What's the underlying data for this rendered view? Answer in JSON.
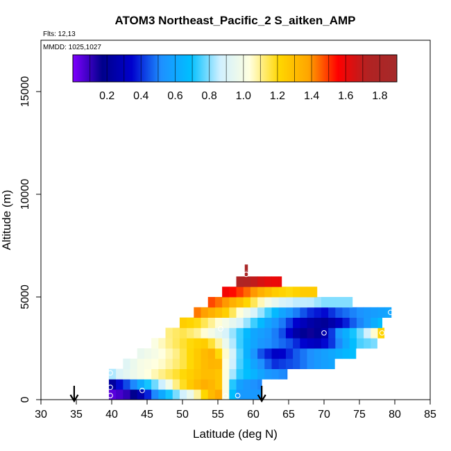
{
  "chart_data": {
    "type": "heatmap",
    "title": "ATOM3 Northeast_Pacific_2 S_aitken_AMP",
    "flights_label": "Flts: 12,13",
    "mmdd_label": "MMDD: 1025,1027",
    "xlabel": "Latitude (deg N)",
    "ylabel": "Altitude (m)",
    "xlim": [
      30,
      85
    ],
    "ylim": [
      0,
      17500
    ],
    "x_ticks": [
      "30",
      "35",
      "40",
      "45",
      "50",
      "55",
      "60",
      "65",
      "70",
      "75",
      "80",
      "85"
    ],
    "y_ticks": [
      "0",
      "5000",
      "10000",
      "15000"
    ],
    "colorbar": {
      "range": [
        0,
        1.9
      ],
      "tick_labels": [
        "0.2",
        "0.4",
        "0.6",
        "0.8",
        "1.0",
        "1.2",
        "1.4",
        "1.6",
        "1.8"
      ],
      "stops": [
        "#7f00ff",
        "#00008b",
        "#0000cd",
        "#1e90ff",
        "#00bfff",
        "#d0f0ff",
        "#ffffe0",
        "#ffd700",
        "#ffa500",
        "#ff0000",
        "#b22222",
        "#a52a2a"
      ]
    },
    "arrows_lat": [
      34.7,
      61.2
    ],
    "rows": [
      {
        "alt": 0,
        "lat_min": 39.6,
        "lat_max": 61.2,
        "lats": [
          39.6,
          42,
          44,
          46,
          48,
          51,
          53,
          55,
          56,
          57.5,
          59,
          61.2
        ],
        "vals": [
          0.04,
          0.1,
          0.25,
          0.5,
          0.7,
          0.95,
          1.2,
          1.4,
          1.05,
          0.55,
          0.55,
          0.55
        ]
      },
      {
        "alt": 500,
        "lat_min": 39.6,
        "lat_max": 61.2,
        "lats": [
          39.6,
          41,
          43,
          45,
          47,
          49,
          51,
          53,
          55,
          56,
          57.5,
          59,
          61.2
        ],
        "vals": [
          0.15,
          0.35,
          0.5,
          0.7,
          0.85,
          1.1,
          1.25,
          1.35,
          1.3,
          1.05,
          0.6,
          0.55,
          0.5
        ]
      },
      {
        "alt": 1000,
        "lat_min": 39.6,
        "lat_max": 64.8,
        "lats": [
          39.6,
          41,
          44,
          47,
          50,
          53,
          55,
          56,
          57.5,
          60,
          62,
          64.8
        ],
        "vals": [
          0.8,
          0.9,
          1.0,
          1.1,
          1.2,
          1.3,
          1.3,
          1.05,
          0.75,
          0.65,
          0.55,
          0.5
        ]
      },
      {
        "alt": 1500,
        "lat_min": 41.6,
        "lat_max": 71.5,
        "lats": [
          41.6,
          44,
          47,
          50,
          53,
          55,
          56,
          57.5,
          60,
          63,
          66,
          69,
          71.5
        ],
        "vals": [
          0.9,
          1.0,
          1.05,
          1.15,
          1.3,
          1.35,
          1.05,
          0.8,
          0.6,
          0.4,
          0.45,
          0.55,
          0.6
        ]
      },
      {
        "alt": 2000,
        "lat_min": 43.6,
        "lat_max": 74.5,
        "lats": [
          43.6,
          46,
          49,
          52,
          54,
          55.5,
          57,
          59,
          61,
          63.5,
          66,
          69,
          71,
          74.5
        ],
        "vals": [
          0.95,
          1.0,
          1.1,
          1.25,
          1.35,
          1.15,
          0.9,
          0.65,
          0.45,
          0.3,
          0.45,
          0.55,
          0.6,
          0.7
        ]
      },
      {
        "alt": 2500,
        "lat_min": 45.6,
        "lat_max": 77.5,
        "lats": [
          45.6,
          48,
          51,
          53,
          55,
          57,
          59,
          61,
          63,
          65,
          67,
          69,
          71,
          73,
          75,
          77.5
        ],
        "vals": [
          1.0,
          1.1,
          1.2,
          1.25,
          1.1,
          0.85,
          0.65,
          0.55,
          0.5,
          0.45,
          0.35,
          0.3,
          0.4,
          0.6,
          0.75,
          0.8
        ]
      },
      {
        "alt": 3000,
        "lat_min": 47.6,
        "lat_max": 78.5,
        "lats": [
          47.6,
          50,
          52,
          54,
          56,
          58,
          60,
          62,
          64,
          66,
          68,
          70,
          72,
          74,
          76,
          78.5
        ],
        "vals": [
          1.1,
          1.15,
          1.1,
          1.0,
          0.9,
          0.75,
          0.6,
          0.55,
          0.45,
          0.25,
          0.15,
          0.25,
          0.55,
          0.7,
          0.85,
          1.3
        ]
      },
      {
        "alt": 3500,
        "lat_min": 49.6,
        "lat_max": 78.2,
        "lats": [
          49.6,
          52,
          54,
          56,
          58,
          60,
          62,
          64,
          66,
          68,
          70,
          72,
          74,
          76,
          78.2
        ],
        "vals": [
          1.25,
          1.2,
          1.1,
          1.0,
          0.9,
          0.75,
          0.6,
          0.5,
          0.35,
          0.25,
          0.2,
          0.3,
          0.45,
          0.55,
          0.7
        ]
      },
      {
        "alt": 4000,
        "lat_min": 51.6,
        "lat_max": 79.5,
        "lats": [
          51.6,
          54,
          56,
          58,
          60,
          62,
          64,
          66,
          68,
          70,
          72,
          74,
          76,
          79.5
        ],
        "vals": [
          1.45,
          1.35,
          1.25,
          1.05,
          0.9,
          0.75,
          0.6,
          0.5,
          0.4,
          0.35,
          0.45,
          0.5,
          0.55,
          0.6
        ]
      },
      {
        "alt": 4500,
        "lat_min": 53.6,
        "lat_max": 74,
        "lats": [
          53.6,
          56,
          58,
          60,
          62,
          64,
          66,
          68,
          70,
          72,
          74
        ],
        "vals": [
          1.5,
          1.4,
          1.3,
          1.15,
          1.0,
          0.9,
          0.85,
          0.85,
          0.8,
          0.8,
          0.8
        ]
      },
      {
        "alt": 5000,
        "lat_min": 55.6,
        "lat_max": 69,
        "lats": [
          55.6,
          57,
          59,
          61,
          63,
          65,
          67,
          69
        ],
        "vals": [
          1.6,
          1.55,
          1.45,
          1.35,
          1.25,
          1.2,
          1.25,
          1.25
        ]
      },
      {
        "alt": 5500,
        "lat_min": 57.6,
        "lat_max": 64,
        "lats": [
          57.6,
          59,
          61,
          62.5,
          64
        ],
        "vals": [
          1.8,
          1.75,
          1.65,
          1.6,
          1.6
        ]
      },
      {
        "alt": 6000,
        "lat_min": 58.8,
        "lat_max": 59.2,
        "lats": [
          58.8,
          59.2
        ],
        "vals": [
          1.85,
          1.85
        ]
      },
      {
        "alt": 6300,
        "lat_min": 58.8,
        "lat_max": 59.2,
        "lats": [
          58.8,
          59.2
        ],
        "vals": [
          1.85,
          1.85
        ]
      }
    ],
    "circles": [
      {
        "lat": 39.8,
        "alt": 200
      },
      {
        "lat": 39.8,
        "alt": 600
      },
      {
        "lat": 39.8,
        "alt": 1300
      },
      {
        "lat": 44.3,
        "alt": 450
      },
      {
        "lat": 55.4,
        "alt": 3450
      },
      {
        "lat": 56.1,
        "alt": 180
      },
      {
        "lat": 57.8,
        "alt": 200
      },
      {
        "lat": 70.0,
        "alt": 3250
      },
      {
        "lat": 78.2,
        "alt": 3250
      },
      {
        "lat": 79.4,
        "alt": 4250
      },
      {
        "lat": 59.0,
        "alt": 6100
      }
    ]
  }
}
